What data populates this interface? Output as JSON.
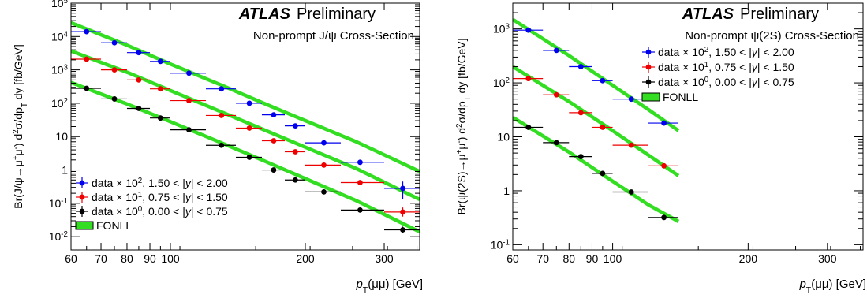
{
  "chart_data": [
    {
      "type": "scatter",
      "brand": "ATLAS",
      "brand_suffix": "Preliminary",
      "title": "Non-prompt J/ψ Cross-Section",
      "xlabel": "p_T(μμ) [GeV]",
      "ylabel": "Br(J/ψ→μ⁺μ⁻) d²σ/dp_T dy [fb/GeV]",
      "xscale": "log",
      "yscale": "log",
      "xlim": [
        60,
        360
      ],
      "ylim": [
        0.004,
        100000
      ],
      "x_ticks": [
        "60",
        "70",
        "80",
        "90",
        "100",
        "200",
        "300"
      ],
      "y_ticks": [
        "10⁻²",
        "10⁻¹",
        "1",
        "10",
        "10²",
        "10³",
        "10⁴",
        "10⁵"
      ],
      "legend_position": "bottom-left",
      "legend": [
        "data × 10², 1.50 < |y| < 2.00",
        "data × 10¹, 0.75 < |y| < 1.50",
        "data × 10⁰, 0.00 < |y| < 0.75",
        "FONLL"
      ],
      "colors": {
        "series_0": "#0000ee",
        "series_1": "#ee0000",
        "series_2": "#000000",
        "fonll": "#33dd22",
        "fonll_border": "#000000"
      },
      "series": [
        {
          "name": "data × 10², 1.50 < |y| < 2.00",
          "color": "#0000ee",
          "points": [
            {
              "x": 65,
              "xlo": 60,
              "xhi": 70,
              "y": 14000
            },
            {
              "x": 75,
              "xlo": 70,
              "xhi": 80,
              "y": 6500
            },
            {
              "x": 85,
              "xlo": 80,
              "xhi": 90,
              "y": 3300
            },
            {
              "x": 95,
              "xlo": 90,
              "xhi": 100,
              "y": 1800
            },
            {
              "x": 110,
              "xlo": 100,
              "xhi": 120,
              "y": 800
            },
            {
              "x": 130,
              "xlo": 120,
              "xhi": 140,
              "y": 270
            },
            {
              "x": 150,
              "xlo": 140,
              "xhi": 160,
              "y": 100
            },
            {
              "x": 170,
              "xlo": 160,
              "xhi": 180,
              "y": 45
            },
            {
              "x": 190,
              "xlo": 180,
              "xhi": 200,
              "y": 21
            },
            {
              "x": 220,
              "xlo": 200,
              "xhi": 240,
              "y": 6.5
            },
            {
              "x": 265,
              "xlo": 240,
              "xhi": 300,
              "y": 1.7
            },
            {
              "x": 330,
              "xlo": 300,
              "xhi": 360,
              "y": 0.28,
              "ylo": 0.13,
              "yhi": 0.45
            }
          ]
        },
        {
          "name": "data × 10¹, 0.75 < |y| < 1.50",
          "color": "#ee0000",
          "points": [
            {
              "x": 65,
              "xlo": 60,
              "xhi": 70,
              "y": 2100
            },
            {
              "x": 75,
              "xlo": 70,
              "xhi": 80,
              "y": 1000
            },
            {
              "x": 85,
              "xlo": 80,
              "xhi": 90,
              "y": 500
            },
            {
              "x": 95,
              "xlo": 90,
              "xhi": 100,
              "y": 270
            },
            {
              "x": 110,
              "xlo": 100,
              "xhi": 120,
              "y": 120
            },
            {
              "x": 130,
              "xlo": 120,
              "xhi": 140,
              "y": 43
            },
            {
              "x": 150,
              "xlo": 140,
              "xhi": 160,
              "y": 18
            },
            {
              "x": 170,
              "xlo": 160,
              "xhi": 180,
              "y": 7.5
            },
            {
              "x": 190,
              "xlo": 180,
              "xhi": 200,
              "y": 3.5
            },
            {
              "x": 220,
              "xlo": 200,
              "xhi": 240,
              "y": 1.4
            },
            {
              "x": 265,
              "xlo": 240,
              "xhi": 300,
              "y": 0.42
            },
            {
              "x": 330,
              "xlo": 300,
              "xhi": 360,
              "y": 0.055,
              "ylo": 0.04,
              "yhi": 0.075
            }
          ]
        },
        {
          "name": "data × 10⁰, 0.00 < |y| < 0.75",
          "color": "#000000",
          "points": [
            {
              "x": 65,
              "xlo": 60,
              "xhi": 70,
              "y": 280
            },
            {
              "x": 75,
              "xlo": 70,
              "xhi": 80,
              "y": 135
            },
            {
              "x": 85,
              "xlo": 80,
              "xhi": 90,
              "y": 70
            },
            {
              "x": 95,
              "xlo": 90,
              "xhi": 100,
              "y": 36
            },
            {
              "x": 110,
              "xlo": 100,
              "xhi": 120,
              "y": 16
            },
            {
              "x": 130,
              "xlo": 120,
              "xhi": 140,
              "y": 5.5
            },
            {
              "x": 150,
              "xlo": 140,
              "xhi": 160,
              "y": 2.4
            },
            {
              "x": 170,
              "xlo": 160,
              "xhi": 180,
              "y": 1.0
            },
            {
              "x": 190,
              "xlo": 180,
              "xhi": 200,
              "y": 0.5
            },
            {
              "x": 220,
              "xlo": 200,
              "xhi": 240,
              "y": 0.22
            },
            {
              "x": 265,
              "xlo": 240,
              "xhi": 300,
              "y": 0.063
            },
            {
              "x": 330,
              "xlo": 300,
              "xhi": 360,
              "y": 0.016,
              "ylo": 0.013,
              "yhi": 0.02
            }
          ]
        }
      ],
      "fonll": [
        {
          "name": "FONLL",
          "x": [
            60,
            80,
            100,
            130,
            160,
            200,
            260,
            360
          ],
          "y": [
            26000,
            5500,
            1500,
            350,
            105,
            30,
            7,
            0.9
          ]
        },
        {
          "name": "FONLL",
          "x": [
            60,
            80,
            100,
            130,
            160,
            200,
            260,
            360
          ],
          "y": [
            3700,
            850,
            240,
            55,
            17,
            4.8,
            1.1,
            0.13
          ]
        },
        {
          "name": "FONLL",
          "x": [
            60,
            80,
            100,
            130,
            160,
            200,
            260,
            360
          ],
          "y": [
            420,
            95,
            28,
            6.5,
            2.0,
            0.55,
            0.12,
            0.014
          ]
        }
      ]
    },
    {
      "type": "scatter",
      "brand": "ATLAS",
      "brand_suffix": "Preliminary",
      "title": "Non-prompt ψ(2S) Cross-Section",
      "xlabel": "p_T(μμ) [GeV]",
      "ylabel": "Br(ψ(2S)→μ⁺μ⁻) d²σ/dp_T dy [fb/GeV]",
      "xscale": "log",
      "yscale": "log",
      "xlim": [
        60,
        360
      ],
      "ylim": [
        0.08,
        3000
      ],
      "x_ticks": [
        "60",
        "70",
        "80",
        "90",
        "100",
        "200",
        "300"
      ],
      "y_ticks": [
        "10⁻¹",
        "1",
        "10",
        "10²",
        "10³"
      ],
      "legend_position": "top-right",
      "legend": [
        "data × 10², 1.50 < |y| < 2.00",
        "data × 10¹, 0.75 < |y| < 1.50",
        "data × 10⁰, 0.00 < |y| < 0.75",
        "FONLL"
      ],
      "colors": {
        "series_0": "#0000ee",
        "series_1": "#ee0000",
        "series_2": "#000000",
        "fonll": "#33dd22",
        "fonll_border": "#000000"
      },
      "series": [
        {
          "name": "data × 10², 1.50 < |y| < 2.00",
          "color": "#0000ee",
          "points": [
            {
              "x": 65,
              "xlo": 60,
              "xhi": 70,
              "y": 950
            },
            {
              "x": 75,
              "xlo": 70,
              "xhi": 80,
              "y": 400
            },
            {
              "x": 85,
              "xlo": 80,
              "xhi": 90,
              "y": 200
            },
            {
              "x": 95,
              "xlo": 90,
              "xhi": 100,
              "y": 110
            },
            {
              "x": 110,
              "xlo": 100,
              "xhi": 120,
              "y": 50
            },
            {
              "x": 130,
              "xlo": 120,
              "xhi": 140,
              "y": 18
            }
          ]
        },
        {
          "name": "data × 10¹, 0.75 < |y| < 1.50",
          "color": "#ee0000",
          "points": [
            {
              "x": 65,
              "xlo": 60,
              "xhi": 70,
              "y": 120
            },
            {
              "x": 75,
              "xlo": 70,
              "xhi": 80,
              "y": 60
            },
            {
              "x": 85,
              "xlo": 80,
              "xhi": 90,
              "y": 28
            },
            {
              "x": 95,
              "xlo": 90,
              "xhi": 100,
              "y": 15
            },
            {
              "x": 110,
              "xlo": 100,
              "xhi": 120,
              "y": 7
            },
            {
              "x": 130,
              "xlo": 120,
              "xhi": 140,
              "y": 2.9
            }
          ]
        },
        {
          "name": "data × 10⁰, 0.00 < |y| < 0.75",
          "color": "#000000",
          "points": [
            {
              "x": 65,
              "xlo": 60,
              "xhi": 70,
              "y": 15
            },
            {
              "x": 75,
              "xlo": 70,
              "xhi": 80,
              "y": 7.8
            },
            {
              "x": 85,
              "xlo": 80,
              "xhi": 90,
              "y": 4.3
            },
            {
              "x": 95,
              "xlo": 90,
              "xhi": 100,
              "y": 2.1
            },
            {
              "x": 110,
              "xlo": 100,
              "xhi": 120,
              "y": 0.95
            },
            {
              "x": 130,
              "xlo": 120,
              "xhi": 140,
              "y": 0.32
            }
          ]
        }
      ],
      "fonll": [
        {
          "name": "FONLL",
          "x": [
            60,
            80,
            100,
            120,
            140
          ],
          "y": [
            1500,
            320,
            90,
            32,
            13
          ]
        },
        {
          "name": "FONLL",
          "x": [
            60,
            80,
            100,
            120,
            140
          ],
          "y": [
            200,
            45,
            13,
            4.6,
            1.9
          ]
        },
        {
          "name": "FONLL",
          "x": [
            60,
            80,
            100,
            120,
            140
          ],
          "y": [
            23,
            5.2,
            1.5,
            0.55,
            0.27
          ]
        }
      ]
    }
  ]
}
